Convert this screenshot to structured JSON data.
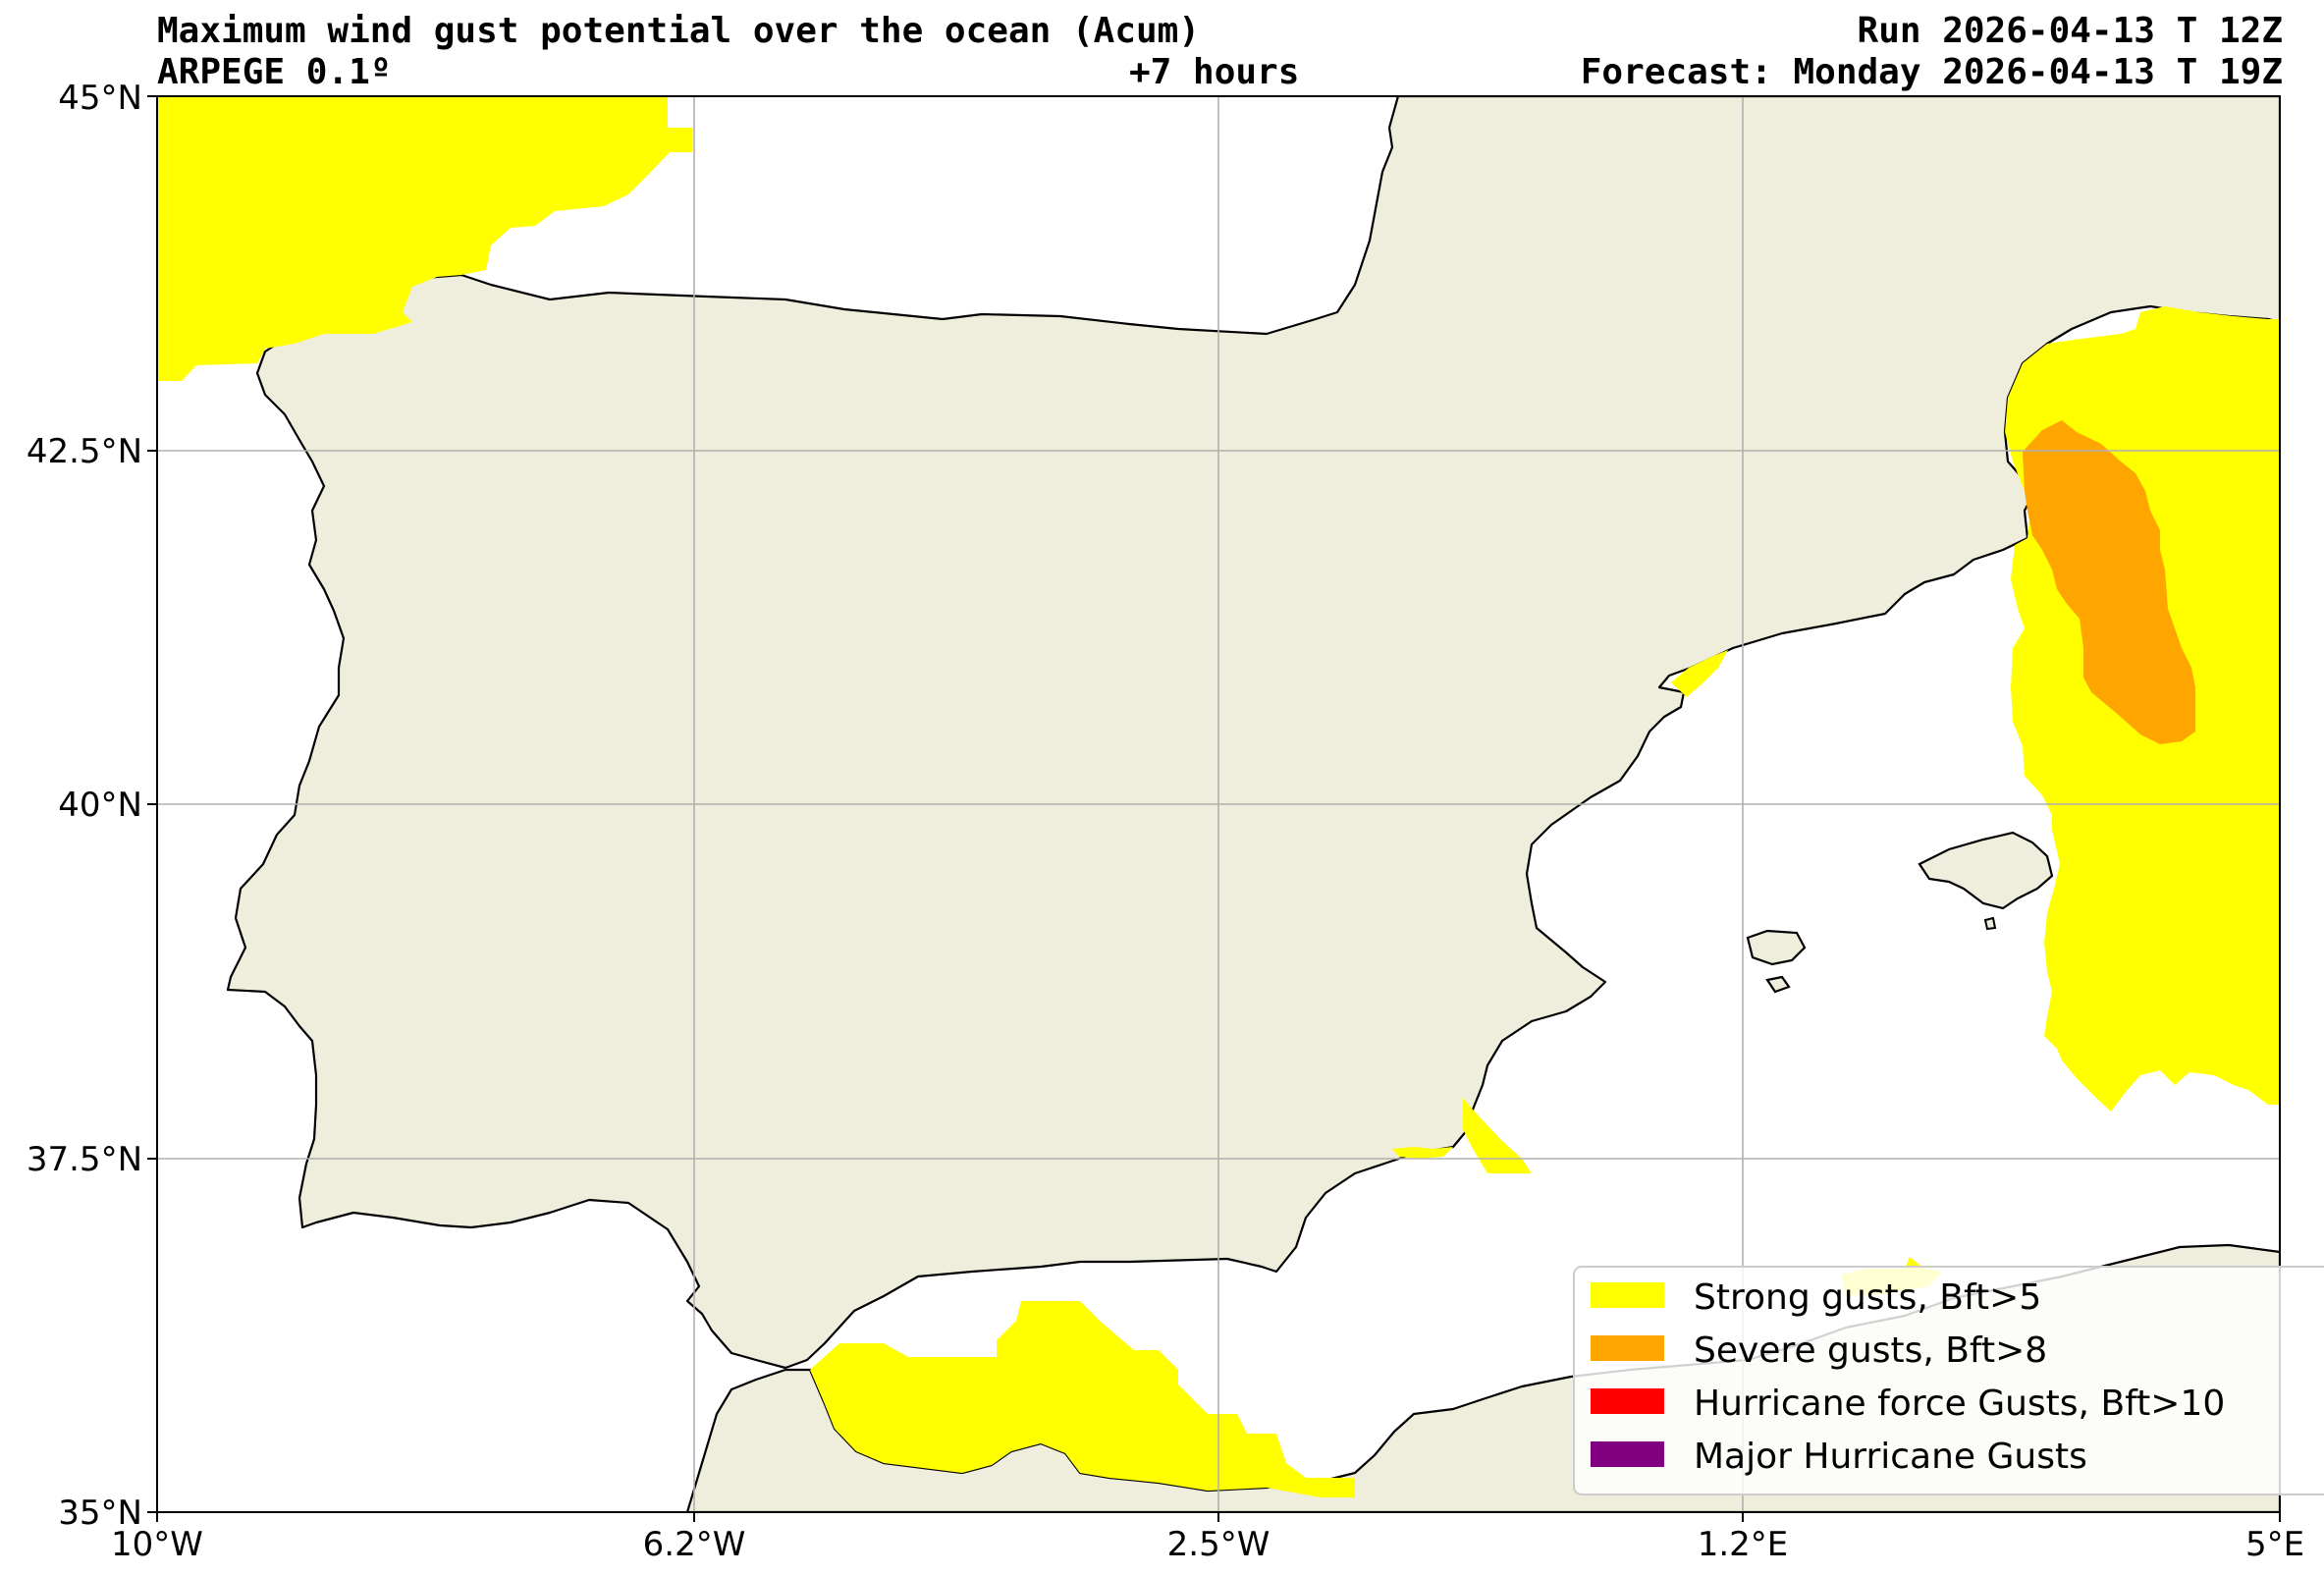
{
  "header": {
    "title": "Maximum wind gust potential over the ocean (Acum)",
    "model": "ARPEGE 0.1º",
    "lead_time": "+7 hours",
    "run": "Run 2026-04-13 T 12Z",
    "forecast": "Forecast: Monday 2026-04-13 T 19Z"
  },
  "axes": {
    "y_ticks": [
      "45°N",
      "42.5°N",
      "40°N",
      "37.5°N",
      "35°N"
    ],
    "x_ticks": [
      "10°W",
      "6.2°W",
      "2.5°W",
      "1.2°E",
      "5°E"
    ]
  },
  "legend": {
    "items": [
      {
        "label": "Strong gusts, Bft>5",
        "color": "#ffff00"
      },
      {
        "label": "Severe gusts, Bft>8",
        "color": "#ffa500"
      },
      {
        "label": "Hurricane force Gusts, Bft>10",
        "color": "#ff0000"
      },
      {
        "label": "Major Hurricane Gusts",
        "color": "#800080"
      }
    ]
  },
  "colors": {
    "land": "#efeedc",
    "sea": "#ffffff",
    "strong": "#ffff00",
    "severe": "#ffa500",
    "grid": "#b0b0b0"
  }
}
